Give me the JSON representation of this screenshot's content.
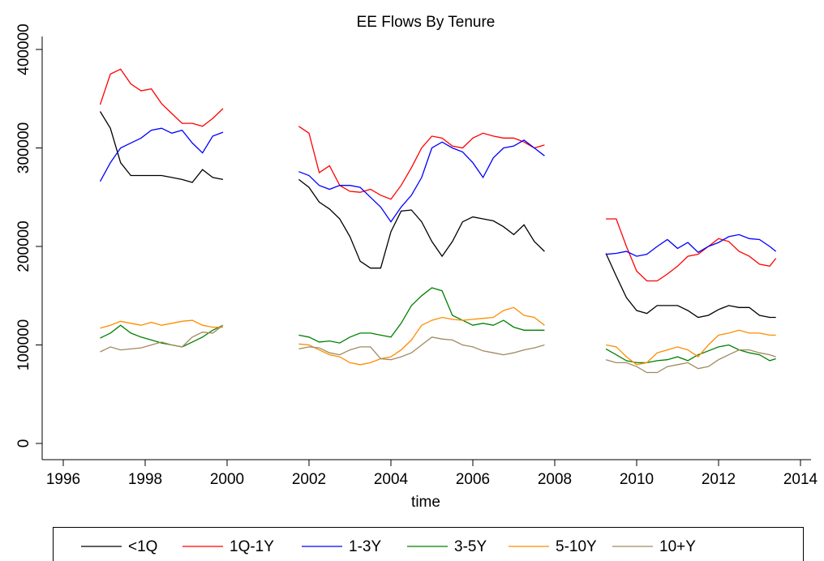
{
  "chart_data": {
    "type": "line",
    "title": "EE Flows By Tenure",
    "x_label": "time",
    "x": [
      1996.9,
      1997.15,
      1997.4,
      1997.65,
      1997.9,
      1998.15,
      1998.4,
      1998.65,
      1998.9,
      1999.15,
      1999.4,
      1999.65,
      1999.9,
      2000.8,
      2001.75,
      2002,
      2002.25,
      2002.5,
      2002.75,
      2003,
      2003.25,
      2003.5,
      2003.75,
      2004,
      2004.25,
      2004.5,
      2004.75,
      2005,
      2005.25,
      2005.5,
      2005.75,
      2006,
      2006.25,
      2006.5,
      2006.75,
      2007,
      2007.25,
      2007.5,
      2007.75,
      2008.5,
      2009.25,
      2009.5,
      2009.75,
      2010,
      2010.25,
      2010.5,
      2010.75,
      2011,
      2011.25,
      2011.5,
      2011.75,
      2012,
      2012.25,
      2012.5,
      2012.75,
      2013,
      2013.25,
      2013.4
    ],
    "series": [
      {
        "name": "<1Q",
        "color": "#000000",
        "values": [
          337000,
          320000,
          285000,
          272000,
          272000,
          272000,
          272000,
          270000,
          268000,
          265000,
          278000,
          270000,
          268000,
          null,
          268000,
          260000,
          245000,
          238000,
          228000,
          210000,
          185000,
          178000,
          178000,
          215000,
          236000,
          237000,
          225000,
          205000,
          190000,
          205000,
          225000,
          230000,
          228000,
          226000,
          220000,
          212000,
          222000,
          205000,
          195000,
          null,
          193000,
          170000,
          148000,
          135000,
          132000,
          140000,
          140000,
          140000,
          135000,
          128000,
          130000,
          136000,
          140000,
          138000,
          138000,
          130000,
          128000,
          128000
        ]
      },
      {
        "name": "1Q-1Y",
        "color": "#ff0000",
        "values": [
          344000,
          375000,
          380000,
          365000,
          358000,
          360000,
          345000,
          335000,
          325000,
          325000,
          322000,
          330000,
          340000,
          null,
          322000,
          315000,
          275000,
          282000,
          262000,
          256000,
          255000,
          258000,
          252000,
          248000,
          262000,
          280000,
          300000,
          312000,
          310000,
          302000,
          300000,
          310000,
          315000,
          312000,
          310000,
          310000,
          306000,
          300000,
          303000,
          null,
          228000,
          228000,
          200000,
          175000,
          165000,
          165000,
          172000,
          180000,
          190000,
          192000,
          200000,
          208000,
          205000,
          195000,
          190000,
          182000,
          180000,
          188000
        ]
      },
      {
        "name": "1-3Y",
        "color": "#0000ff",
        "values": [
          266000,
          285000,
          300000,
          305000,
          310000,
          318000,
          320000,
          315000,
          318000,
          305000,
          295000,
          312000,
          316000,
          null,
          276000,
          272000,
          262000,
          258000,
          262000,
          262000,
          260000,
          250000,
          240000,
          225000,
          240000,
          252000,
          270000,
          300000,
          306000,
          300000,
          296000,
          285000,
          270000,
          290000,
          300000,
          302000,
          308000,
          300000,
          292000,
          null,
          192000,
          193000,
          195000,
          190000,
          192000,
          200000,
          207000,
          198000,
          204000,
          194000,
          200000,
          204000,
          210000,
          212000,
          208000,
          207000,
          200000,
          195000
        ]
      },
      {
        "name": "3-5Y",
        "color": "#008000",
        "values": [
          107000,
          112000,
          120000,
          112000,
          108000,
          105000,
          102000,
          100000,
          98000,
          103000,
          108000,
          115000,
          120000,
          null,
          110000,
          108000,
          103000,
          104000,
          102000,
          108000,
          112000,
          112000,
          110000,
          108000,
          122000,
          140000,
          150000,
          158000,
          155000,
          130000,
          125000,
          120000,
          122000,
          120000,
          125000,
          118000,
          115000,
          115000,
          115000,
          null,
          96000,
          90000,
          84000,
          82000,
          82000,
          84000,
          85000,
          88000,
          84000,
          90000,
          94000,
          98000,
          100000,
          95000,
          92000,
          90000,
          84000,
          86000
        ]
      },
      {
        "name": "5-10Y",
        "color": "#ff8c00",
        "values": [
          117000,
          120000,
          124000,
          122000,
          120000,
          123000,
          120000,
          122000,
          124000,
          125000,
          120000,
          118000,
          118000,
          null,
          101000,
          100000,
          95000,
          90000,
          88000,
          82000,
          80000,
          82000,
          86000,
          88000,
          95000,
          105000,
          120000,
          125000,
          128000,
          126000,
          125000,
          126000,
          127000,
          128000,
          135000,
          138000,
          130000,
          128000,
          120000,
          null,
          100000,
          98000,
          88000,
          80000,
          82000,
          92000,
          95000,
          98000,
          95000,
          88000,
          100000,
          110000,
          112000,
          115000,
          112000,
          112000,
          110000,
          110000
        ]
      },
      {
        "name": "10+Y",
        "color": "#a08a60",
        "values": [
          93000,
          98000,
          95000,
          96000,
          97000,
          100000,
          103000,
          100000,
          98000,
          108000,
          113000,
          112000,
          120000,
          null,
          96000,
          98000,
          97000,
          92000,
          90000,
          95000,
          98000,
          98000,
          86000,
          85000,
          88000,
          92000,
          100000,
          108000,
          106000,
          105000,
          100000,
          98000,
          94000,
          92000,
          90000,
          92000,
          95000,
          97000,
          100000,
          null,
          85000,
          82000,
          82000,
          78000,
          72000,
          72000,
          78000,
          80000,
          82000,
          76000,
          78000,
          85000,
          90000,
          95000,
          95000,
          92000,
          90000,
          88000
        ]
      }
    ],
    "xlim": [
      1996,
      2014
    ],
    "xticks": [
      1996,
      1998,
      2000,
      2002,
      2004,
      2006,
      2008,
      2010,
      2012,
      2014
    ],
    "ylim": [
      0,
      400000
    ],
    "yticks": [
      0,
      100000,
      200000,
      300000,
      400000
    ]
  }
}
